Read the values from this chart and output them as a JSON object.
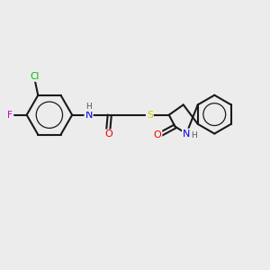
{
  "background_color": "#ececec",
  "bond_color": "#1a1a1a",
  "atom_colors": {
    "Cl": "#00bb00",
    "F": "#cc00cc",
    "N": "#0000ee",
    "O": "#ee0000",
    "S": "#cccc00",
    "H": "#555555",
    "C": "#1a1a1a"
  },
  "figsize": [
    3.0,
    3.0
  ],
  "dpi": 100
}
